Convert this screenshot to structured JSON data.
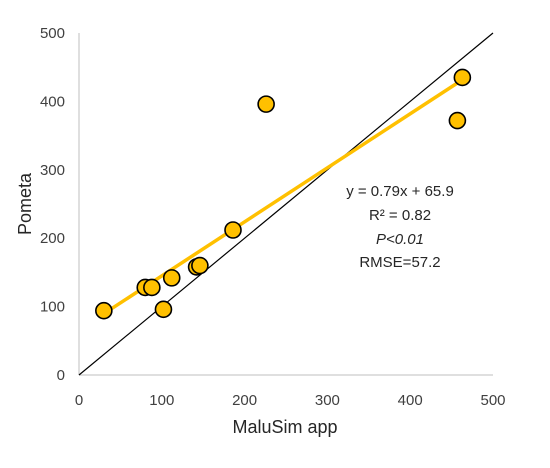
{
  "chart_data": {
    "type": "scatter",
    "title": "",
    "xlabel": "MaluSim app",
    "ylabel": "Pometa",
    "xlim": [
      0,
      500
    ],
    "ylim": [
      0,
      500
    ],
    "x_ticks": [
      "0",
      "100",
      "200",
      "300",
      "400",
      "500"
    ],
    "y_ticks": [
      "0",
      "100",
      "200",
      "300",
      "400",
      "500"
    ],
    "grid": false,
    "legend": "none",
    "series": [
      {
        "points": [
          {
            "x": 30,
            "y": 94
          },
          {
            "x": 80,
            "y": 128
          },
          {
            "x": 88,
            "y": 128
          },
          {
            "x": 102,
            "y": 96
          },
          {
            "x": 112,
            "y": 142
          },
          {
            "x": 142,
            "y": 158
          },
          {
            "x": 146,
            "y": 160
          },
          {
            "x": 186,
            "y": 212
          },
          {
            "x": 226,
            "y": 396
          },
          {
            "x": 457,
            "y": 372
          },
          {
            "x": 463,
            "y": 435
          }
        ],
        "color": "#ffc000",
        "edge_color": "#000000"
      }
    ],
    "trendline": {
      "slope": 0.79,
      "intercept": 65.9,
      "x_start": 30,
      "x_end": 463,
      "color": "#ffc000"
    },
    "reference_line": {
      "x1": 0,
      "y1": 0,
      "x2": 500,
      "y2": 500,
      "color": "#000000"
    },
    "annotations": [
      "y = 0.79x + 65.9",
      "R² = 0.82",
      "P<0.01",
      "RMSE=57.2"
    ]
  }
}
